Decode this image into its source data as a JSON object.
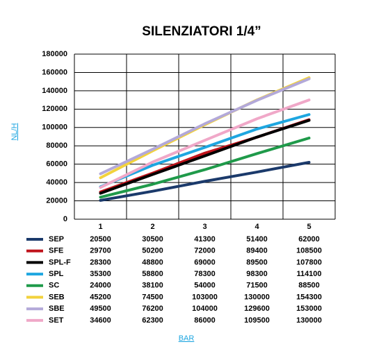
{
  "chart_data": {
    "type": "line",
    "title": "SILENZIATORI 1/4”",
    "xlabel": "BAR",
    "ylabel": "NL/H",
    "categories": [
      "1",
      "2",
      "3",
      "4",
      "5"
    ],
    "ylim": [
      0,
      180000
    ],
    "yticks": [
      0,
      20000,
      40000,
      60000,
      80000,
      100000,
      120000,
      140000,
      160000,
      180000
    ],
    "grid": true,
    "series": [
      {
        "name": "SEP",
        "color": "#1b3a6b",
        "values": [
          20500,
          30500,
          41300,
          51400,
          62000
        ]
      },
      {
        "name": "SFE",
        "color": "#c0141c",
        "values": [
          29700,
          50200,
          72000,
          89400,
          108500
        ]
      },
      {
        "name": "SPL-F",
        "color": "#000000",
        "values": [
          28300,
          48800,
          69000,
          89500,
          107800
        ]
      },
      {
        "name": "SPL",
        "color": "#1ea6e0",
        "values": [
          35300,
          58800,
          78300,
          98300,
          114100
        ]
      },
      {
        "name": "SC",
        "color": "#1f9a4a",
        "values": [
          24000,
          38100,
          54000,
          71500,
          88500
        ]
      },
      {
        "name": "SEB",
        "color": "#f2d23c",
        "values": [
          45200,
          74500,
          103000,
          130000,
          154300
        ]
      },
      {
        "name": "SBE",
        "color": "#b3a9d9",
        "values": [
          49500,
          76200,
          104000,
          129600,
          153000
        ]
      },
      {
        "name": "SET",
        "color": "#f0a8c8",
        "values": [
          34600,
          62300,
          86000,
          109500,
          130000
        ]
      }
    ]
  }
}
